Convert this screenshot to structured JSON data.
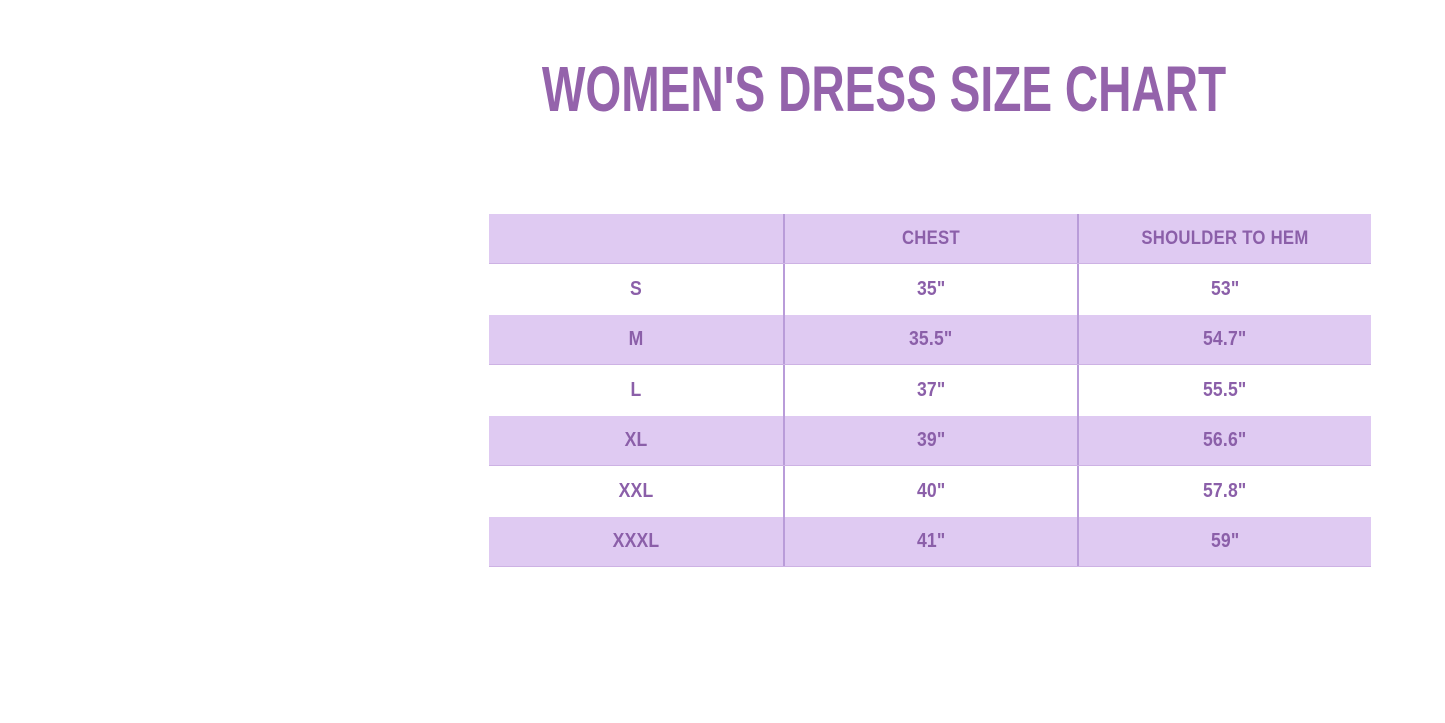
{
  "title": {
    "text": "WOMEN'S DRESS SIZE CHART"
  },
  "colors": {
    "title_text": "#9463AB",
    "table_text": "#8B5FA9",
    "band_background": "#DFCAF2",
    "row_background": "#FFFFFF",
    "column_divider": "#B99CD9",
    "page_background": "#FFFFFF"
  },
  "chart_data": {
    "type": "table",
    "title": "WOMEN'S DRESS SIZE CHART",
    "columns": [
      "",
      "CHEST",
      "SHOULDER TO HEM"
    ],
    "rows": [
      [
        "S",
        "35\"",
        "53\""
      ],
      [
        "M",
        "35.5\"",
        "54.7\""
      ],
      [
        "L",
        "37\"",
        "55.5\""
      ],
      [
        "XL",
        "39\"",
        "56.6\""
      ],
      [
        "XXL",
        "40\"",
        "57.8\""
      ],
      [
        "XXXL",
        "41\"",
        "59\""
      ]
    ],
    "layout": {
      "banded_rows": "alternating lavender and white, header lavender",
      "column_count": 3,
      "row_count": 7
    }
  }
}
